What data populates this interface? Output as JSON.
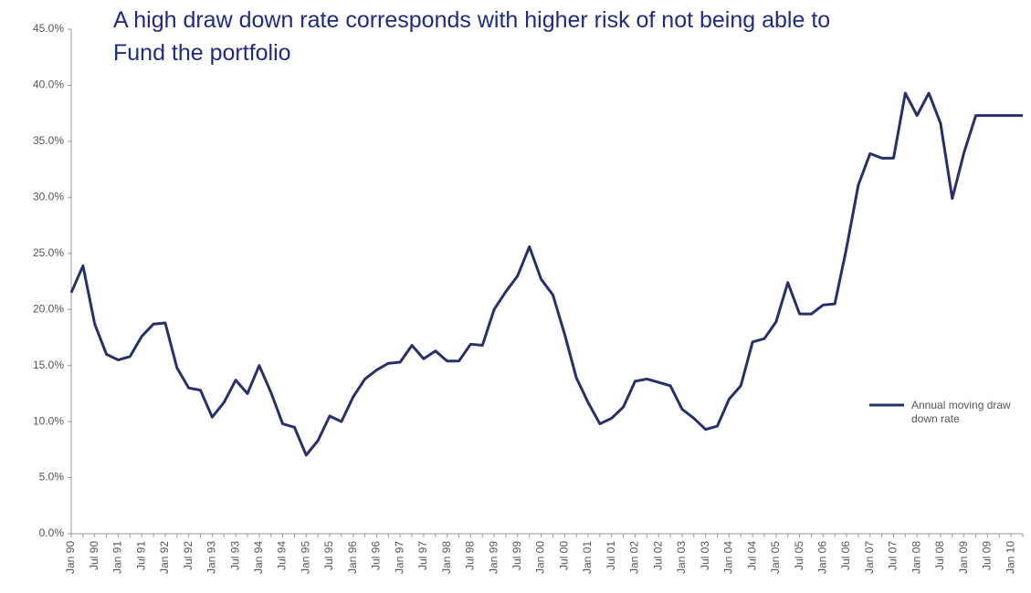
{
  "chart_data": {
    "type": "line",
    "title": "A high draw down rate corresponds with higher risk of not being able to Fund the portfolio",
    "categories": [
      "Jan 90",
      null,
      "Jul 90",
      null,
      "Jan 91",
      null,
      "Jul 91",
      null,
      "Jan 92",
      null,
      "Jul 92",
      null,
      "Jan 93",
      null,
      "Jul 93",
      null,
      "Jan 94",
      null,
      "Jul 94",
      null,
      "Jan 95",
      null,
      "Jul 95",
      null,
      "Jan 96",
      null,
      "Jul 96",
      null,
      "Jan 97",
      null,
      "Jul 97",
      null,
      "Jan 98",
      null,
      "Jul 98",
      null,
      "Jan 99",
      null,
      "Jul 99",
      null,
      "Jan 00",
      null,
      "Jul 00",
      null,
      "Jan 01",
      null,
      "Jul 01",
      null,
      "Jan 02",
      null,
      "Jul 02",
      null,
      "Jan 03",
      null,
      "Jul 03",
      null,
      "Jan 04",
      null,
      "Jul 04",
      null,
      "Jan 05",
      null,
      "Jul 05",
      null,
      "Jan 06",
      null,
      "Jul 06",
      null,
      "Jan 07",
      null,
      "Jul 07",
      null,
      "Jan 08",
      null,
      "Jul 08",
      null,
      "Jan 09",
      null,
      "Jul 09",
      null,
      "Jan 10",
      null
    ],
    "series": [
      {
        "name": "Annual moving draw down rate",
        "color": "#27306f",
        "values": [
          21.5,
          23.9,
          18.7,
          16.0,
          15.5,
          15.8,
          17.6,
          18.7,
          18.8,
          14.8,
          13.0,
          12.8,
          10.4,
          11.7,
          13.7,
          12.5,
          15.0,
          12.6,
          9.8,
          9.5,
          7.0,
          8.3,
          10.5,
          10.0,
          12.2,
          13.8,
          14.6,
          15.2,
          15.3,
          16.8,
          15.6,
          16.3,
          15.4,
          15.4,
          16.9,
          16.8,
          20.0,
          21.6,
          23.0,
          25.6,
          22.7,
          21.3,
          17.8,
          13.9,
          11.7,
          9.8,
          10.3,
          11.3,
          13.6,
          13.8,
          13.5,
          13.2,
          11.1,
          10.3,
          9.3,
          9.6,
          12.0,
          13.2,
          17.1,
          17.4,
          18.9,
          22.4,
          19.6,
          19.6,
          20.4,
          20.5,
          25.5,
          31.1,
          33.9,
          33.5,
          33.5,
          39.3,
          37.3,
          39.3,
          36.6,
          29.9,
          34.0,
          37.3,
          37.3,
          37.3,
          37.3,
          37.3
        ]
      }
    ],
    "ylim": [
      0,
      45
    ],
    "yticks": [
      {
        "value": 0,
        "label": "0.0%"
      },
      {
        "value": 5,
        "label": "5.0%"
      },
      {
        "value": 10,
        "label": "10.0%"
      },
      {
        "value": 15,
        "label": "15.0%"
      },
      {
        "value": 20,
        "label": "20.0%"
      },
      {
        "value": 25,
        "label": "25.0%"
      },
      {
        "value": 30,
        "label": "30.0%"
      },
      {
        "value": 35,
        "label": "35.0%"
      },
      {
        "value": 40,
        "label": "40.0%"
      },
      {
        "value": 45,
        "label": "45.0%"
      }
    ],
    "grid": false,
    "legend": "right"
  }
}
